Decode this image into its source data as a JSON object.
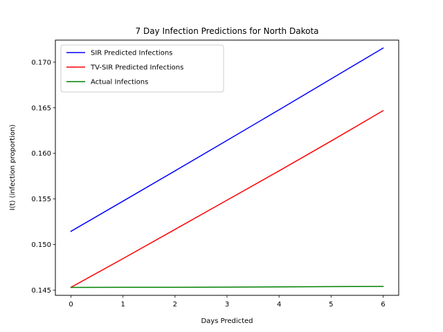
{
  "chart_data": {
    "type": "line",
    "title": "7 Day Infection Predictions for North Dakota",
    "xlabel": "Days Predicted",
    "ylabel": "I(t) (infection proportion)",
    "xlim": [
      -0.3,
      6.3
    ],
    "ylim": [
      0.14443,
      0.17242
    ],
    "xticks": [
      0,
      1,
      2,
      3,
      4,
      5,
      6
    ],
    "xtick_labels": [
      "0",
      "1",
      "2",
      "3",
      "4",
      "5",
      "6"
    ],
    "yticks": [
      0.145,
      0.15,
      0.155,
      0.16,
      0.165,
      0.17
    ],
    "ytick_labels": [
      "0.145",
      "0.150",
      "0.155",
      "0.160",
      "0.165",
      "0.170"
    ],
    "grid": false,
    "legend_position": "top-left",
    "x": [
      0,
      1,
      2,
      3,
      4,
      5,
      6
    ],
    "series": [
      {
        "name": "SIR Predicted Infections",
        "color": "#0000ff",
        "values": [
          0.15145,
          0.15476,
          0.15808,
          0.16142,
          0.16478,
          0.16816,
          0.17155
        ]
      },
      {
        "name": "TV-SIR Predicted Infections",
        "color": "#ff0000",
        "values": [
          0.14531,
          0.14846,
          0.15166,
          0.15487,
          0.15808,
          0.16135,
          0.16468
        ]
      },
      {
        "name": "Actual Infections",
        "color": "#008000",
        "values": [
          0.1453,
          0.14531,
          0.14531,
          0.14533,
          0.14536,
          0.14539,
          0.14541
        ]
      }
    ]
  }
}
